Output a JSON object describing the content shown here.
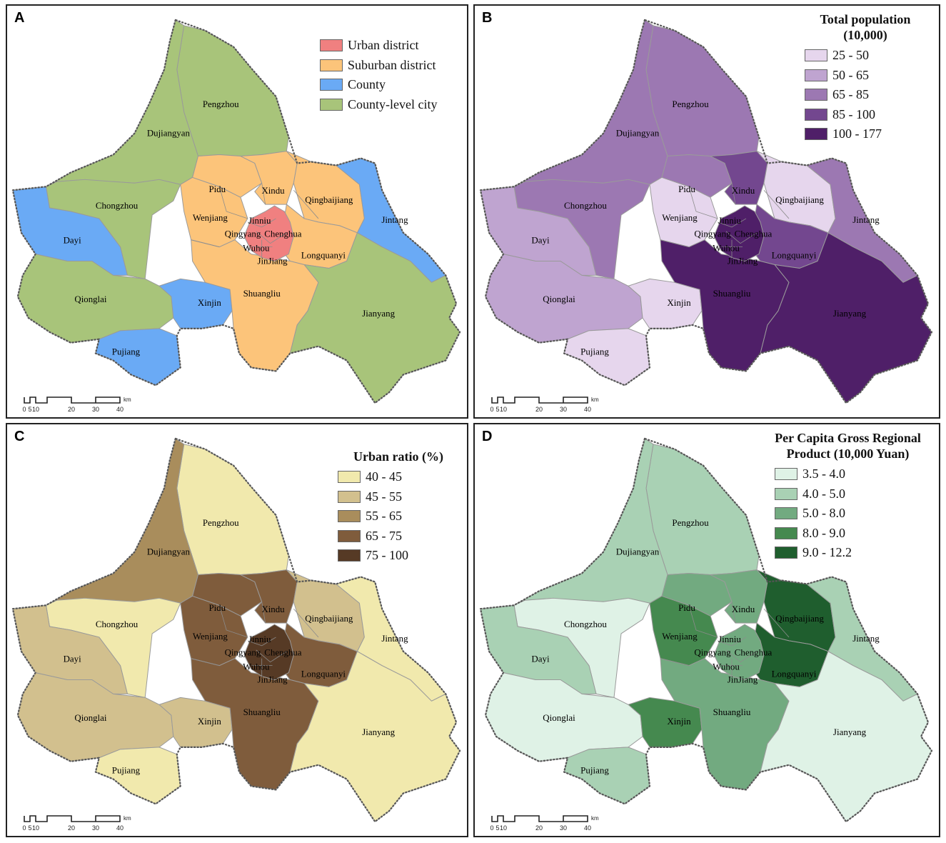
{
  "panels": [
    {
      "id": "A",
      "legend_title": "",
      "legend": [
        {
          "label": "Urban district",
          "color": "#f08080"
        },
        {
          "label": "Suburban district",
          "color": "#fcc47a"
        },
        {
          "label": "County",
          "color": "#6aaaf5"
        },
        {
          "label": "County-level city",
          "color": "#a8c47a"
        }
      ],
      "fills": {
        "Pengzhou": "#a8c47a",
        "Dujiangyan": "#a8c47a",
        "Chongzhou": "#a8c47a",
        "Qionglai": "#a8c47a",
        "Jianyang": "#a8c47a",
        "Dayi": "#6aaaf5",
        "Pujiang": "#6aaaf5",
        "Xinjin": "#6aaaf5",
        "Jintang": "#6aaaf5",
        "Pidu": "#fcc47a",
        "Wenjiang": "#fcc47a",
        "Xindu": "#fcc47a",
        "Qingbaijiang": "#fcc47a",
        "Longquanyi": "#fcc47a",
        "Shuangliu": "#fcc47a",
        "Core": "#f08080"
      }
    },
    {
      "id": "B",
      "legend_title": "Total population (10,000)",
      "legend": [
        {
          "label": "25 - 50",
          "color": "#e6d6ed"
        },
        {
          "label": "50 - 65",
          "color": "#bfa4d0"
        },
        {
          "label": "65 - 85",
          "color": "#9c78b2"
        },
        {
          "label": "85 - 100",
          "color": "#73478f"
        },
        {
          "label": "100 - 177",
          "color": "#4f1f68"
        }
      ],
      "fills": {
        "Pengzhou": "#9c78b2",
        "Dujiangyan": "#9c78b2",
        "Chongzhou": "#9c78b2",
        "Qionglai": "#bfa4d0",
        "Jianyang": "#4f1f68",
        "Dayi": "#bfa4d0",
        "Pujiang": "#e6d6ed",
        "Xinjin": "#e6d6ed",
        "Jintang": "#9c78b2",
        "Pidu": "#9c78b2",
        "Wenjiang": "#e6d6ed",
        "Xindu": "#73478f",
        "Qingbaijiang": "#e6d6ed",
        "Longquanyi": "#73478f",
        "Shuangliu": "#4f1f68",
        "Core": "#4f1f68"
      }
    },
    {
      "id": "C",
      "legend_title": "Urban ratio (%)",
      "legend": [
        {
          "label": "40 - 45",
          "color": "#f1e9ad"
        },
        {
          "label": "45 - 55",
          "color": "#d2c08e"
        },
        {
          "label": "55 - 65",
          "color": "#a98d5c"
        },
        {
          "label": "65 - 75",
          "color": "#7f5c3c"
        },
        {
          "label": "75 - 100",
          "color": "#563a25"
        }
      ],
      "fills": {
        "Pengzhou": "#f1e9ad",
        "Dujiangyan": "#a98d5c",
        "Chongzhou": "#f1e9ad",
        "Qionglai": "#d2c08e",
        "Jianyang": "#f1e9ad",
        "Dayi": "#d2c08e",
        "Pujiang": "#f1e9ad",
        "Xinjin": "#d2c08e",
        "Jintang": "#f1e9ad",
        "Pidu": "#7f5c3c",
        "Wenjiang": "#7f5c3c",
        "Xindu": "#7f5c3c",
        "Qingbaijiang": "#d2c08e",
        "Longquanyi": "#7f5c3c",
        "Shuangliu": "#7f5c3c",
        "Core": "#563a25"
      }
    },
    {
      "id": "D",
      "legend_title": "Per Capita Gross Regional Product (10,000 Yuan)",
      "legend": [
        {
          "label": "3.5 - 4.0",
          "color": "#dff2e6"
        },
        {
          "label": "4.0 - 5.0",
          "color": "#a9d1b4"
        },
        {
          "label": "5.0 - 8.0",
          "color": "#72aa80"
        },
        {
          "label": "8.0 - 9.0",
          "color": "#45894f"
        },
        {
          "label": "9.0 - 12.2",
          "color": "#1f5e2e"
        }
      ],
      "fills": {
        "Pengzhou": "#a9d1b4",
        "Dujiangyan": "#a9d1b4",
        "Chongzhou": "#dff2e6",
        "Qionglai": "#dff2e6",
        "Jianyang": "#dff2e6",
        "Dayi": "#a9d1b4",
        "Pujiang": "#a9d1b4",
        "Xinjin": "#45894f",
        "Jintang": "#a9d1b4",
        "Pidu": "#72aa80",
        "Wenjiang": "#45894f",
        "Xindu": "#72aa80",
        "Qingbaijiang": "#1f5e2e",
        "Longquanyi": "#1f5e2e",
        "Shuangliu": "#72aa80",
        "Core": "#72aa80"
      }
    }
  ],
  "place_labels": [
    "Pengzhou",
    "Dujiangyan",
    "Pidu",
    "Xindu",
    "Qingbaijiang",
    "Chongzhou",
    "Wenjiang",
    "Jinniu",
    "Jintang",
    "Dayi",
    "Qingyang",
    "Chenghua",
    "Wuhou",
    "JinJiang",
    "Longquanyi",
    "Qionglai",
    "Xinjin",
    "Shuangliu",
    "Jianyang",
    "Pujiang"
  ],
  "scale": {
    "ticks": [
      "0",
      "5",
      "10",
      "20",
      "30",
      "40"
    ],
    "unit": "km"
  }
}
